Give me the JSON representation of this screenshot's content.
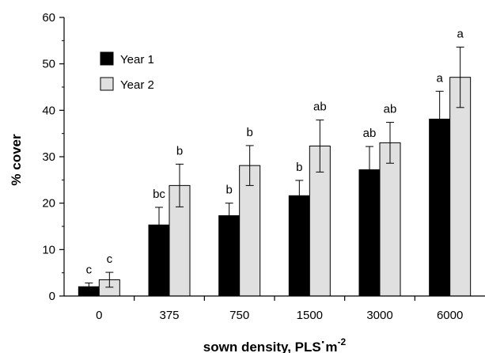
{
  "chart_data": {
    "type": "bar",
    "categories": [
      "0",
      "375",
      "750",
      "1500",
      "3000",
      "6000"
    ],
    "series": [
      {
        "name": "Year 1",
        "color": "#000000",
        "values": [
          2.0,
          15.3,
          17.3,
          21.6,
          27.2,
          38.1
        ],
        "error": [
          0.8,
          3.8,
          2.7,
          3.3,
          5.0,
          6.0
        ],
        "sig_labels": [
          "c",
          "bc",
          "b",
          "b",
          "ab",
          "a"
        ]
      },
      {
        "name": "Year 2",
        "color": "#e0e0e0",
        "values": [
          3.5,
          23.8,
          28.1,
          32.3,
          33.0,
          47.1
        ],
        "error": [
          1.6,
          4.6,
          4.3,
          5.6,
          4.4,
          6.5
        ],
        "sig_labels": [
          "c",
          "b",
          "b",
          "ab",
          "ab",
          "a"
        ]
      }
    ],
    "title": "",
    "xlabel_main": "sown density, PLS",
    "xlabel_dot": "·",
    "xlabel_unit": "m",
    "xlabel_exp": "-2",
    "ylabel": "% cover",
    "ylim": [
      0,
      60
    ],
    "yticks": [
      "0",
      "10",
      "20",
      "30",
      "40",
      "50",
      "60"
    ],
    "legend_position": "top-left",
    "grid": false
  }
}
